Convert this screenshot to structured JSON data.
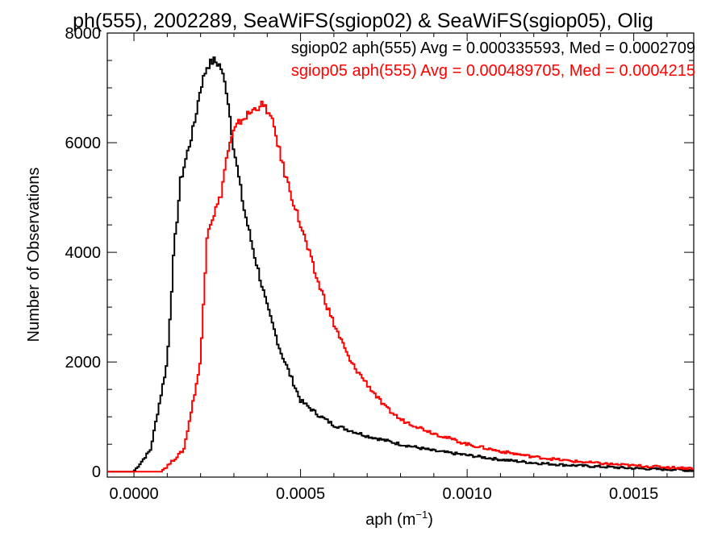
{
  "chart_data": {
    "type": "line",
    "title": "ph(555), 2002289, SeaWiFS(sgiop02) & SeaWiFS(sgiop05), Olig",
    "xlabel": "aph (m",
    "xlabel_sup": "−1",
    "xlabel_end": ")",
    "ylabel": "Number of Observations",
    "xlim": [
      -8e-05,
      0.00168
    ],
    "ylim": [
      -100,
      8000
    ],
    "x_ticks": [
      0.0,
      0.0005,
      0.001,
      0.0015
    ],
    "x_tick_labels": [
      "0.0000",
      "0.0005",
      "0.0010",
      "0.0015"
    ],
    "y_ticks": [
      0,
      2000,
      4000,
      6000,
      8000
    ],
    "y_tick_labels": [
      "0",
      "2000",
      "4000",
      "6000",
      "8000"
    ],
    "grid": false,
    "legend": {
      "placement": "top-right",
      "entries": [
        "sgiop02 aph(555) Avg = 0.000335593, Med = 0.0002709",
        "sgiop05 aph(555) Avg = 0.000489705, Med = 0.0004215"
      ]
    },
    "series": [
      {
        "color": "#000000",
        "x": [
          -8e-05,
          0.0,
          5e-05,
          0.0001,
          0.00012,
          0.00014,
          0.00016,
          0.00018,
          0.0002,
          0.00022,
          0.00024,
          0.00026,
          0.00028,
          0.0003,
          0.00033,
          0.00036,
          0.0004,
          0.00044,
          0.00048,
          0.0005,
          0.00055,
          0.0006,
          0.0007,
          0.0008,
          0.0009,
          0.001,
          0.0011,
          0.0012,
          0.0013,
          0.0014,
          0.0015,
          0.0016,
          0.00168
        ],
        "y": [
          0,
          0,
          400,
          2000,
          4000,
          5300,
          5800,
          6300,
          7000,
          7400,
          7500,
          7400,
          6900,
          5900,
          4800,
          4000,
          3000,
          2200,
          1600,
          1300,
          1050,
          850,
          650,
          500,
          380,
          300,
          220,
          160,
          120,
          90,
          60,
          40,
          30
        ]
      },
      {
        "color": "#ff0000",
        "x": [
          -8e-05,
          8e-05,
          0.0001,
          0.00015,
          0.0002,
          0.00022,
          0.00024,
          0.00026,
          0.00028,
          0.0003,
          0.00032,
          0.00034,
          0.00036,
          0.00038,
          0.0004,
          0.00042,
          0.00045,
          0.0005,
          0.00055,
          0.0006,
          0.00065,
          0.0007,
          0.00075,
          0.0008,
          0.0009,
          0.001,
          0.0011,
          0.0012,
          0.0013,
          0.0014,
          0.0015,
          0.0016,
          0.00168
        ],
        "y": [
          0,
          0,
          100,
          400,
          2000,
          4400,
          4700,
          5000,
          5800,
          6200,
          6400,
          6500,
          6600,
          6700,
          6600,
          6300,
          5500,
          4500,
          3500,
          2700,
          2000,
          1600,
          1200,
          950,
          700,
          500,
          370,
          270,
          200,
          150,
          110,
          80,
          60
        ]
      }
    ]
  }
}
